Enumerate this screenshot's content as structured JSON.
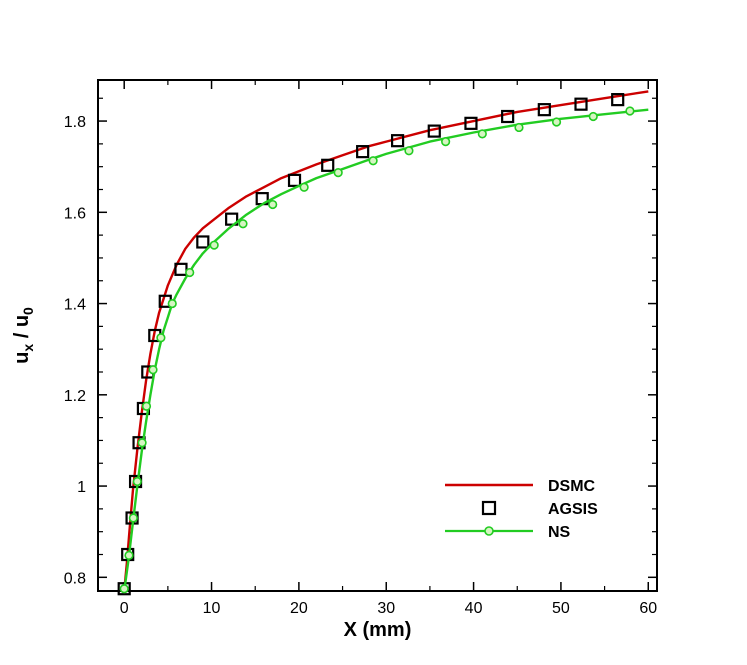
{
  "chart_data": {
    "type": "line",
    "xlabel": "X (mm)",
    "ylabel": {
      "base1": "u",
      "sub1": "x",
      "mid": " / u",
      "sub2": "0"
    },
    "xlim": [
      -3,
      61
    ],
    "ylim": [
      0.77,
      1.89
    ],
    "xticks": [
      0,
      10,
      20,
      30,
      40,
      50,
      60
    ],
    "xtick_labels": [
      "0",
      "10",
      "20",
      "30",
      "40",
      "50",
      "60"
    ],
    "yticks": [
      0.8,
      1.0,
      1.2,
      1.4,
      1.6,
      1.8
    ],
    "ytick_labels": [
      "0.8",
      "1",
      "1.2",
      "1.4",
      "1.6",
      "1.8"
    ],
    "grid": false,
    "legend_position": "bottom-right",
    "series": [
      {
        "name": "DSMC",
        "style": "line",
        "color": "#cc0000",
        "x": [
          0,
          0.3,
          0.6,
          1.0,
          1.5,
          2.0,
          2.5,
          3.0,
          3.5,
          4.0,
          5.0,
          6.0,
          7.0,
          8.0,
          9.0,
          10,
          12,
          14,
          16,
          18,
          20,
          22,
          25,
          28,
          30,
          35,
          40,
          45,
          50,
          55,
          60
        ],
        "y": [
          0.77,
          0.83,
          0.9,
          0.99,
          1.08,
          1.16,
          1.23,
          1.29,
          1.34,
          1.38,
          1.44,
          1.485,
          1.52,
          1.545,
          1.565,
          1.58,
          1.61,
          1.635,
          1.655,
          1.675,
          1.69,
          1.705,
          1.725,
          1.745,
          1.755,
          1.78,
          1.8,
          1.82,
          1.835,
          1.85,
          1.865
        ]
      },
      {
        "name": "AGSIS",
        "style": "markers",
        "marker": "square",
        "color": "#000000",
        "x": [
          0,
          0.4,
          0.9,
          1.3,
          1.7,
          2.2,
          2.7,
          3.5,
          4.7,
          6.5,
          9.0,
          12.3,
          15.8,
          19.5,
          23.3,
          27.3,
          31.3,
          35.5,
          39.7,
          43.9,
          48.1,
          52.3,
          56.5
        ],
        "y": [
          0.775,
          0.85,
          0.93,
          1.01,
          1.095,
          1.17,
          1.25,
          1.33,
          1.405,
          1.475,
          1.535,
          1.585,
          1.63,
          1.67,
          1.703,
          1.733,
          1.757,
          1.778,
          1.795,
          1.81,
          1.825,
          1.837,
          1.847
        ]
      },
      {
        "name": "NS",
        "style": "line+markers",
        "marker": "circle",
        "color": "#22cc22",
        "x": [
          0,
          0.5,
          1.0,
          1.5,
          2.0,
          2.5,
          3.0,
          3.5,
          4.0,
          4.5,
          5.0,
          5.5,
          6.0,
          7.0,
          8.0,
          9.0,
          10,
          12,
          14,
          16,
          18,
          20,
          22,
          25,
          28,
          30,
          35,
          40,
          45,
          50,
          55,
          60
        ],
        "y": [
          0.77,
          0.84,
          0.92,
          1.0,
          1.075,
          1.14,
          1.2,
          1.255,
          1.3,
          1.34,
          1.37,
          1.4,
          1.42,
          1.455,
          1.485,
          1.51,
          1.53,
          1.565,
          1.595,
          1.62,
          1.64,
          1.658,
          1.675,
          1.695,
          1.715,
          1.728,
          1.755,
          1.775,
          1.792,
          1.805,
          1.815,
          1.825
        ],
        "marker_x": [
          0,
          0.55,
          1.05,
          1.5,
          2.05,
          2.55,
          3.3,
          4.2,
          5.5,
          7.5,
          10.3,
          13.6,
          17.0,
          20.6,
          24.5,
          28.5,
          32.6,
          36.8,
          41.0,
          45.2,
          49.5,
          53.7,
          57.9
        ],
        "marker_y": [
          0.775,
          0.848,
          0.93,
          1.01,
          1.095,
          1.175,
          1.255,
          1.325,
          1.4,
          1.468,
          1.528,
          1.575,
          1.617,
          1.655,
          1.687,
          1.713,
          1.735,
          1.755,
          1.772,
          1.786,
          1.798,
          1.81,
          1.822
        ]
      }
    ]
  }
}
